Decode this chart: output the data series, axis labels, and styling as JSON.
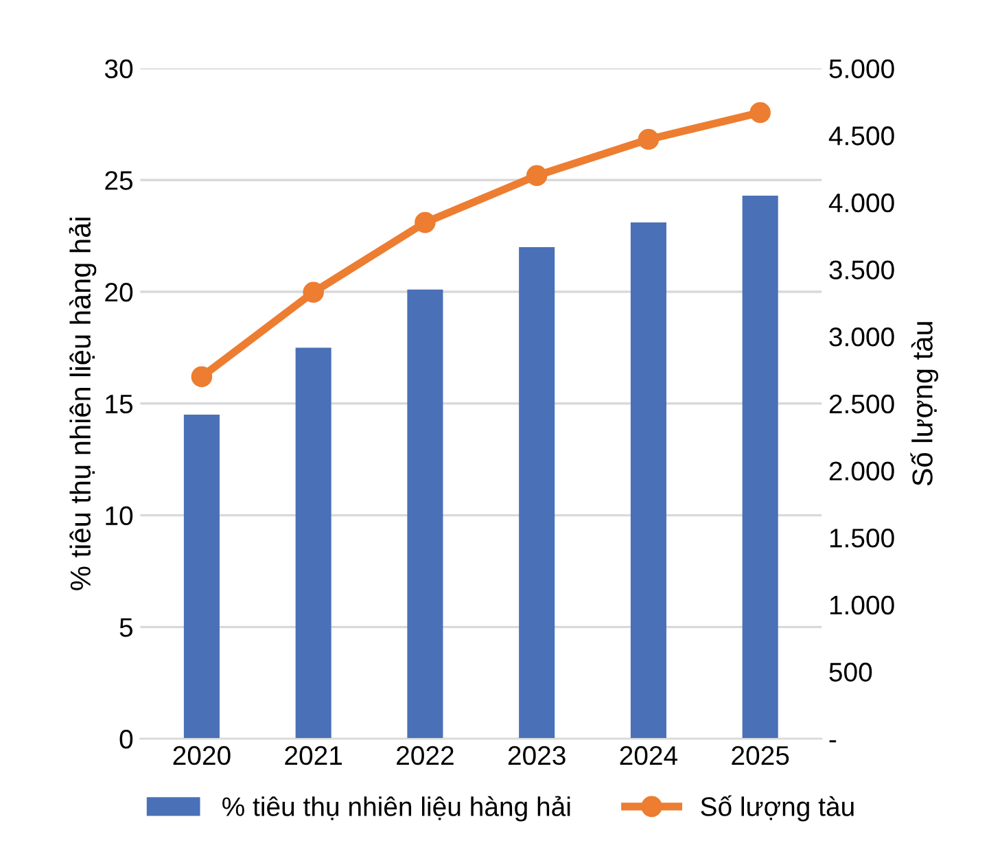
{
  "chart_data": {
    "type": "bar",
    "categories": [
      "2020",
      "2021",
      "2022",
      "2023",
      "2024",
      "2025"
    ],
    "ylabel": "% tiêu thụ nhiên liệu hàng hải",
    "y2label": "Số lượng tàu",
    "series": [
      {
        "name": "% tiêu thụ nhiên liệu hàng hải",
        "color": "#4a70b7",
        "values": [
          14.5,
          17.5,
          20.1,
          22.0,
          23.1,
          24.3
        ]
      },
      {
        "name": "Số lượng tàu",
        "type": "line",
        "axis": "y2",
        "color": "#ed7d31",
        "marker": "circle",
        "values": [
          2700,
          3330,
          3850,
          4200,
          4470,
          4670
        ]
      }
    ],
    "ylim": [
      0,
      30
    ],
    "yticks": [
      0,
      5,
      10,
      15,
      20,
      25,
      30
    ],
    "y2lim": [
      0,
      5000
    ],
    "y2ticks": [
      {
        "value": 0,
        "label": "-"
      },
      {
        "value": 500,
        "label": "500"
      },
      {
        "value": 1000,
        "label": "1.000"
      },
      {
        "value": 1500,
        "label": "1.500"
      },
      {
        "value": 2000,
        "label": "2.000"
      },
      {
        "value": 2500,
        "label": "2.500"
      },
      {
        "value": 3000,
        "label": "3.000"
      },
      {
        "value": 3500,
        "label": "3.500"
      },
      {
        "value": 4000,
        "label": "4.000"
      },
      {
        "value": 4500,
        "label": "4.500"
      },
      {
        "value": 5000,
        "label": "5.000"
      }
    ],
    "grid": "y",
    "legend": "bottom"
  }
}
